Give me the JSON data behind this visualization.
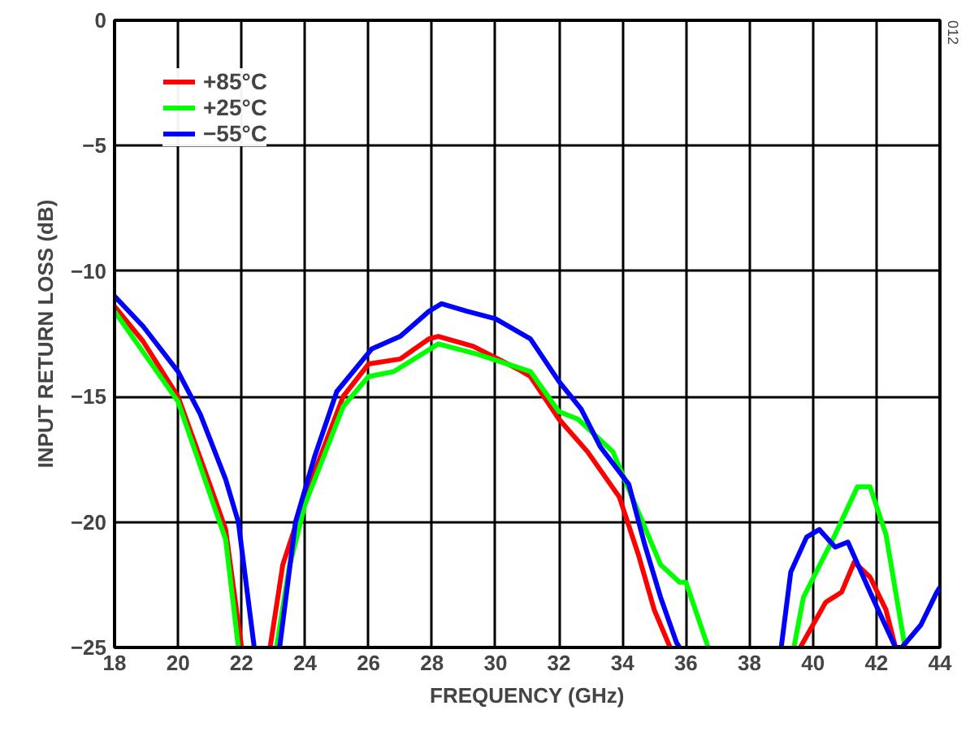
{
  "chart_data": {
    "type": "line",
    "xlabel": "FREQUENCY (GHz)",
    "ylabel": "INPUT RETURN LOSS (dB)",
    "xlim": [
      18,
      44
    ],
    "ylim": [
      -25,
      0
    ],
    "xticks": [
      18,
      20,
      22,
      24,
      26,
      28,
      30,
      32,
      34,
      36,
      38,
      40,
      42,
      44
    ],
    "yticks": [
      {
        "value": 0,
        "label": "0"
      },
      {
        "value": -5,
        "label": "−5"
      },
      {
        "value": -10,
        "label": "−10"
      },
      {
        "value": -15,
        "label": "−15"
      },
      {
        "value": -20,
        "label": "−20"
      },
      {
        "value": -25,
        "label": "−25"
      }
    ],
    "grid": true,
    "legend": "top left",
    "line_style": "solid",
    "marker": "none",
    "annotations": [
      "012"
    ],
    "series": [
      {
        "name": "+85°C",
        "color": "#ff0000",
        "x": [
          18,
          18.9,
          20,
          21,
          21.5,
          22,
          22.5,
          22.9,
          23.3,
          24,
          25.2,
          26,
          27,
          27.9,
          28.2,
          29.3,
          30.7,
          31.1,
          32,
          32.9,
          33.9,
          34.5,
          35,
          35.5,
          37.5,
          39.6,
          40.4,
          40.9,
          41.3,
          41.8,
          42.3,
          42.6
        ],
        "values": [
          -11.4,
          -12.8,
          -15.0,
          -18.5,
          -20.3,
          -25,
          null,
          -25,
          -21.7,
          -19.0,
          -15.0,
          -13.7,
          -13.5,
          -12.7,
          -12.6,
          -13.0,
          -13.9,
          -14.2,
          -15.9,
          -17.2,
          -19.0,
          -21.3,
          -23.5,
          -25,
          null,
          -25,
          -23.2,
          -22.8,
          -21.6,
          -22.2,
          -23.5,
          -25
        ]
      },
      {
        "name": "+25°C",
        "color": "#00ff00",
        "x": [
          18,
          20,
          21.5,
          21.9,
          22.5,
          23.1,
          23.5,
          24,
          25.2,
          26,
          26.8,
          28.2,
          29.4,
          31.1,
          32,
          32.6,
          33.7,
          34.5,
          35.2,
          35.8,
          36.0,
          36.7,
          38,
          39.4,
          39.7,
          40.7,
          41.4,
          41.8,
          42.3,
          42.9
        ],
        "values": [
          -11.6,
          -15.2,
          -20.7,
          -25,
          null,
          -25,
          -21.8,
          -19.3,
          -15.4,
          -14.2,
          -14.0,
          -12.9,
          -13.3,
          -14.0,
          -15.6,
          -15.9,
          -17.2,
          -19.6,
          -21.7,
          -22.4,
          -22.4,
          -25,
          null,
          -25,
          -23.0,
          -20.5,
          -18.6,
          -18.6,
          -20.5,
          -25
        ]
      },
      {
        "name": "−55°C",
        "color": "#0000ff",
        "x": [
          18,
          18.9,
          20,
          20.7,
          21.5,
          21.9,
          22.4,
          22.8,
          23.2,
          23.7,
          24.3,
          25,
          26.1,
          27,
          27.9,
          28.3,
          29.1,
          30,
          31.1,
          32,
          32.7,
          33.3,
          34.2,
          34.7,
          35.2,
          35.7,
          35.8,
          37.5,
          39,
          39.3,
          39.8,
          40.2,
          40.7,
          41.1,
          41.8,
          42.6,
          42.8,
          43.4,
          43.9,
          44
        ],
        "values": [
          -11.0,
          -12.2,
          -14.0,
          -15.7,
          -18.3,
          -20.0,
          -25,
          null,
          -25,
          -20.0,
          -17.4,
          -14.8,
          -13.1,
          -12.6,
          -11.6,
          -11.3,
          -11.6,
          -11.9,
          -12.7,
          -14.4,
          -15.5,
          -17.0,
          -18.5,
          -20.9,
          -23.0,
          -24.8,
          -25,
          null,
          -25,
          -22.0,
          -20.6,
          -20.3,
          -21.0,
          -20.8,
          -22.8,
          -25,
          -25,
          -24.1,
          -22.8,
          -22.6
        ]
      }
    ]
  }
}
